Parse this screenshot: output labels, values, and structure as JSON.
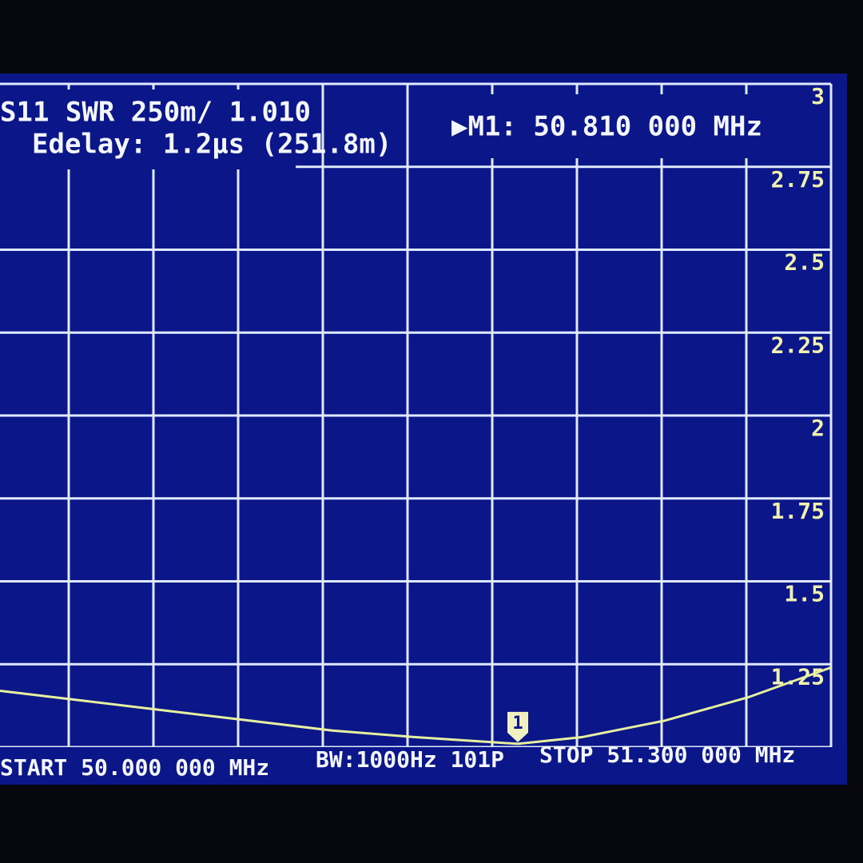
{
  "chart_data": {
    "type": "line",
    "trace_label": "S11 SWR 250m/ 1.010",
    "edelay": "Edelay: 1.2µs (251.8m)",
    "marker_readout": "▶M1: 50.810 000 MHz",
    "marker_label": "1",
    "start": "START 50.000 000 MHz",
    "bandwidth": "BW:1000Hz 101P",
    "stop": "STOP 51.300 000 MHz",
    "x": [
      50.0,
      50.13,
      50.26,
      50.39,
      50.52,
      50.65,
      50.81,
      50.91,
      51.04,
      51.17,
      51.3
    ],
    "series": [
      {
        "color": "#e6f0a0",
        "values": [
          1.17,
          1.14,
          1.11,
          1.08,
          1.05,
          1.03,
          1.01,
          1.03,
          1.08,
          1.15,
          1.24
        ]
      }
    ],
    "xlim": [
      50.0,
      51.3
    ],
    "ylim": [
      1,
      3
    ],
    "yticks": [
      1.25,
      1.5,
      1.75,
      2,
      2.25,
      2.5,
      2.75,
      3
    ],
    "grid": true
  }
}
